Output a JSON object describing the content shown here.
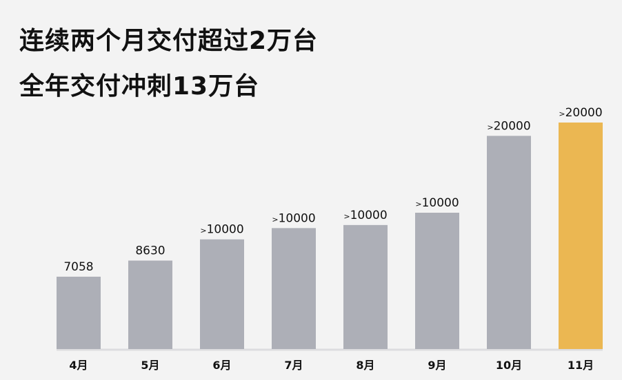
{
  "title_lines": [
    "连续两个月交付超过2万台",
    "全年交付冲刺13万台"
  ],
  "chart_data": {
    "type": "bar",
    "categories": [
      "4月",
      "5月",
      "6月",
      "7月",
      "8月",
      "9月",
      "10月",
      "11月"
    ],
    "values": [
      7058,
      8630,
      10700,
      11800,
      12100,
      13300,
      20800,
      22100
    ],
    "data_labels": [
      {
        "prefix": "",
        "text": "7058"
      },
      {
        "prefix": "",
        "text": "8630"
      },
      {
        "prefix": ">",
        "text": "10000"
      },
      {
        "prefix": ">",
        "text": "10000"
      },
      {
        "prefix": ">",
        "text": "10000"
      },
      {
        "prefix": ">",
        "text": "10000"
      },
      {
        "prefix": ">",
        "text": "20000"
      },
      {
        "prefix": ">",
        "text": "20000"
      }
    ],
    "colors": {
      "default": "#adafb7",
      "highlight": "#ebb752",
      "axis": "#dcdcdf",
      "background": "#f3f3f3"
    },
    "highlight_index": 7,
    "ylim": [
      0,
      22100
    ],
    "grid": false,
    "legend": "none",
    "title": "",
    "xlabel": "",
    "ylabel": ""
  }
}
